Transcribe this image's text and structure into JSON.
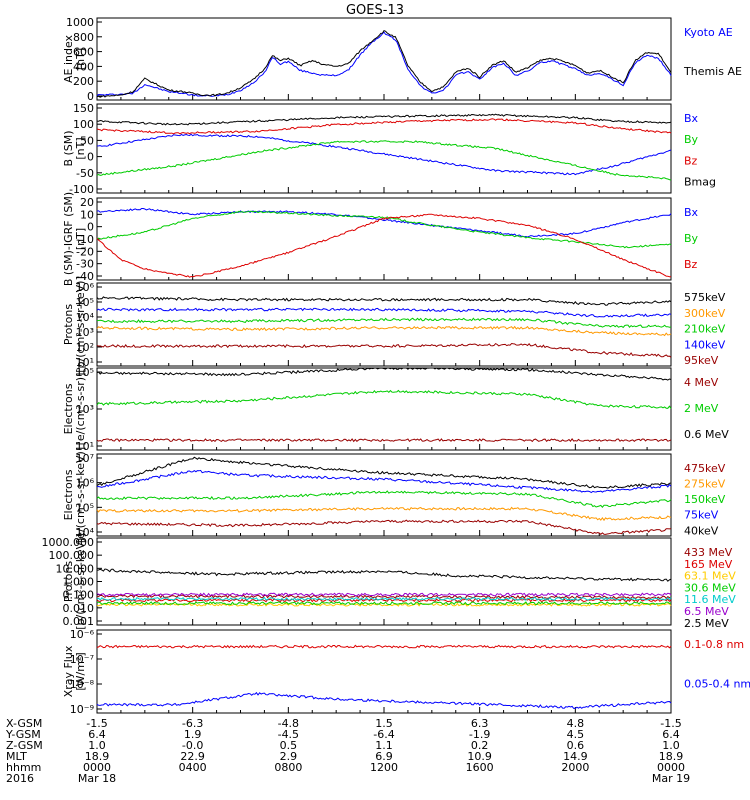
{
  "title": "GOES-13",
  "chart_data": [
    {
      "type": "line",
      "ylabel": "AE index\n[nT]",
      "yticks": [
        "1000",
        "800",
        "600",
        "400",
        "200",
        "0"
      ],
      "ylim": [
        0,
        1000
      ],
      "series": [
        {
          "name": "Kyoto AE",
          "color": "#0000ff",
          "x": [
            0,
            60,
            90,
            120,
            180,
            220,
            240,
            270,
            300,
            330,
            360,
            390,
            420,
            440,
            460,
            480,
            510,
            540,
            570,
            600,
            630,
            660,
            690,
            720,
            750,
            780,
            810,
            840,
            870,
            900,
            930,
            960,
            990,
            1020,
            1050,
            1080,
            1110,
            1140,
            1170,
            1200,
            1230,
            1260,
            1290,
            1320,
            1350,
            1380,
            1410,
            1440
          ],
          "values": [
            60,
            70,
            80,
            190,
            100,
            80,
            60,
            50,
            50,
            70,
            120,
            200,
            330,
            520,
            440,
            470,
            360,
            330,
            300,
            300,
            360,
            550,
            700,
            820,
            730,
            380,
            180,
            80,
            120,
            300,
            350,
            250,
            390,
            450,
            300,
            350,
            450,
            480,
            430,
            380,
            300,
            330,
            260,
            180,
            450,
            550,
            500,
            300
          ]
        },
        {
          "name": "Themis AE",
          "color": "#000000",
          "x": [
            0,
            60,
            90,
            120,
            180,
            220,
            240,
            270,
            300,
            330,
            360,
            390,
            420,
            440,
            460,
            480,
            510,
            540,
            570,
            600,
            630,
            660,
            690,
            720,
            750,
            780,
            810,
            840,
            870,
            900,
            930,
            960,
            990,
            1020,
            1050,
            1080,
            1110,
            1140,
            1170,
            1200,
            1230,
            1260,
            1290,
            1320,
            1350,
            1380,
            1410,
            1440
          ],
          "values": [
            40,
            60,
            100,
            260,
            120,
            100,
            80,
            60,
            60,
            90,
            150,
            240,
            380,
            540,
            480,
            510,
            420,
            480,
            430,
            410,
            440,
            600,
            720,
            840,
            760,
            420,
            220,
            110,
            160,
            340,
            390,
            280,
            420,
            480,
            340,
            390,
            480,
            510,
            470,
            420,
            330,
            360,
            290,
            210,
            480,
            580,
            560,
            330
          ]
        }
      ]
    },
    {
      "type": "line",
      "ylabel": "B (SM)\n[nT]",
      "yticks": [
        "150",
        "100",
        "50",
        "0",
        "-50",
        "-100"
      ],
      "ylim": [
        -110,
        150
      ],
      "series": [
        {
          "name": "Bx",
          "color": "#0000ff",
          "x": [
            0,
            200,
            400,
            600,
            800,
            1000,
            1200,
            1300,
            1440
          ],
          "values": [
            25,
            60,
            55,
            25,
            -10,
            -45,
            -55,
            -30,
            15
          ]
        },
        {
          "name": "By",
          "color": "#00cc00",
          "x": [
            0,
            200,
            400,
            600,
            800,
            1000,
            1200,
            1300,
            1440
          ],
          "values": [
            -58,
            -30,
            10,
            40,
            40,
            20,
            -30,
            -55,
            -70
          ]
        },
        {
          "name": "Bz",
          "color": "#dd0000",
          "x": [
            0,
            200,
            400,
            600,
            800,
            1000,
            1200,
            1300,
            1440
          ],
          "values": [
            75,
            65,
            70,
            90,
            100,
            105,
            95,
            80,
            65
          ]
        },
        {
          "name": "Bmag",
          "color": "#000000",
          "x": [
            0,
            200,
            400,
            600,
            800,
            1000,
            1200,
            1300,
            1440
          ],
          "values": [
            100,
            90,
            100,
            110,
            115,
            118,
            110,
            100,
            95
          ]
        }
      ]
    },
    {
      "type": "line",
      "ylabel": "B (SM)-IGRF (SM)\n[nT]",
      "yticks": [
        "20",
        "10",
        "0",
        "-10",
        "-20",
        "-30",
        "-40"
      ],
      "ylim": [
        -40,
        20
      ],
      "series": [
        {
          "name": "Bx",
          "color": "#0000ff",
          "x": [
            0,
            120,
            240,
            360,
            480,
            600,
            720,
            840,
            960,
            1080,
            1200,
            1320,
            1440
          ],
          "values": [
            10,
            12,
            8,
            10,
            10,
            8,
            4,
            0,
            -4,
            -8,
            -6,
            2,
            8
          ]
        },
        {
          "name": "By",
          "color": "#00cc00",
          "x": [
            0,
            120,
            240,
            360,
            480,
            600,
            720,
            840,
            960,
            1080,
            1200,
            1320,
            1440
          ],
          "values": [
            -10,
            -5,
            5,
            10,
            9,
            7,
            6,
            0,
            -5,
            -9,
            -12,
            -16,
            -14
          ]
        },
        {
          "name": "Bz",
          "color": "#dd0000",
          "x": [
            0,
            60,
            120,
            240,
            360,
            480,
            600,
            720,
            840,
            960,
            1080,
            1200,
            1320,
            1440
          ],
          "values": [
            -10,
            -25,
            -32,
            -38,
            -30,
            -20,
            -8,
            5,
            8,
            5,
            0,
            -10,
            -25,
            -38
          ]
        }
      ]
    },
    {
      "type": "line",
      "ylabel": "Protons\n[p/(cm²-s-sr-keV)]",
      "yticks": [
        "10⁶",
        "10⁵",
        "10⁴",
        "10³",
        "10²",
        "10¹"
      ],
      "ylim": [
        1,
        6
      ],
      "log": true,
      "series": [
        {
          "name": "575keV",
          "color": "#000000",
          "x": [
            0,
            360,
            720,
            1080,
            1260,
            1440
          ],
          "values": [
            5.1,
            5.0,
            5.0,
            5.0,
            4.7,
            4.9
          ]
        },
        {
          "name": "300keV",
          "color": "#ff9900",
          "x": [
            0,
            360,
            720,
            1080,
            1260,
            1440
          ],
          "values": [
            3.3,
            3.2,
            3.3,
            3.3,
            3.0,
            2.9
          ]
        },
        {
          "name": "210keV",
          "color": "#00cc00",
          "x": [
            0,
            360,
            720,
            1080,
            1260,
            1440
          ],
          "values": [
            3.7,
            3.7,
            3.8,
            3.8,
            3.4,
            3.4
          ]
        },
        {
          "name": "140keV",
          "color": "#0000ff",
          "x": [
            0,
            360,
            720,
            1080,
            1260,
            1440
          ],
          "values": [
            4.4,
            4.4,
            4.4,
            4.3,
            4.0,
            4.1
          ]
        },
        {
          "name": "95keV",
          "color": "#990000",
          "x": [
            0,
            360,
            720,
            1080,
            1260,
            1440
          ],
          "values": [
            2.2,
            2.2,
            2.2,
            2.3,
            1.8,
            1.6
          ]
        }
      ]
    },
    {
      "type": "line",
      "ylabel": "Electrons\n[e/(cm²-s-sr)]",
      "yticks": [
        "10⁵",
        "10³",
        "10¹"
      ],
      "ylim": [
        0,
        5
      ],
      "log": true,
      "series": [
        {
          "name": "4 MeV",
          "color": "#990000",
          "x": [
            0,
            360,
            720,
            1080,
            1260,
            1440
          ],
          "values": [
            0.6,
            0.6,
            0.6,
            0.6,
            0.6,
            0.6
          ]
        },
        {
          "name": "2 MeV",
          "color": "#00cc00",
          "x": [
            0,
            360,
            720,
            1080,
            1260,
            1440
          ],
          "values": [
            2.8,
            3.0,
            3.6,
            3.4,
            2.7,
            2.6
          ]
        },
        {
          "name": "0.6 MeV",
          "color": "#000000",
          "x": [
            0,
            360,
            720,
            1080,
            1260,
            1440
          ],
          "values": [
            4.7,
            4.6,
            5.0,
            4.9,
            4.6,
            4.3
          ]
        }
      ]
    },
    {
      "type": "line",
      "ylabel": "Electrons\n[e/(cm²-s-sr-keV)]",
      "yticks": [
        "10⁷",
        "10⁶",
        "10⁵",
        "10⁴"
      ],
      "ylim": [
        3.7,
        7.6
      ],
      "log": true,
      "series": [
        {
          "name": "475keV",
          "color": "#990000",
          "x": [
            0,
            360,
            720,
            1080,
            1260,
            1440
          ],
          "values": [
            4.3,
            4.2,
            4.4,
            4.4,
            3.8,
            4.0
          ]
        },
        {
          "name": "275keV",
          "color": "#ff9900",
          "x": [
            0,
            360,
            720,
            1080,
            1260,
            1440
          ],
          "values": [
            4.9,
            4.9,
            5.0,
            5.0,
            4.5,
            4.6
          ]
        },
        {
          "name": "150keV",
          "color": "#00cc00",
          "x": [
            0,
            360,
            720,
            1080,
            1260,
            1440
          ],
          "values": [
            5.5,
            5.5,
            5.8,
            5.7,
            5.1,
            5.4
          ]
        },
        {
          "name": "75keV",
          "color": "#0000ff",
          "x": [
            0,
            240,
            360,
            720,
            1080,
            1260,
            1440
          ],
          "values": [
            6.0,
            6.8,
            6.6,
            6.4,
            6.0,
            5.8,
            6.1
          ]
        },
        {
          "name": "40keV",
          "color": "#000000",
          "x": [
            0,
            240,
            360,
            720,
            1080,
            1260,
            1440
          ],
          "values": [
            6.1,
            7.4,
            7.2,
            6.7,
            6.4,
            6.0,
            6.2
          ]
        }
      ]
    },
    {
      "type": "line",
      "ylabel": "Protons\n[p/(cm²-s-sr-keV)]",
      "yticks": [
        "1000.000",
        "100.000",
        "10.000",
        "1.000",
        "0.100",
        "0.010",
        "0.001"
      ],
      "ylim": [
        -3,
        3
      ],
      "log": true,
      "series": [
        {
          "name": "433 MeV",
          "color": "#990000",
          "x": [
            0,
            1440
          ],
          "values": [
            -1.0,
            -1.1
          ]
        },
        {
          "name": "165 MeV",
          "color": "#dd0000",
          "x": [
            0,
            1440
          ],
          "values": [
            -1.3,
            -1.3
          ]
        },
        {
          "name": "63.1 MeV",
          "color": "#ffcc00",
          "x": [
            0,
            1440
          ],
          "values": [
            -1.6,
            -1.6
          ]
        },
        {
          "name": "30.6 MeV",
          "color": "#00cc00",
          "x": [
            0,
            1440
          ],
          "values": [
            -1.5,
            -1.5
          ]
        },
        {
          "name": "11.6 MeV",
          "color": "#00cccc",
          "x": [
            0,
            1440
          ],
          "values": [
            -1.2,
            -1.2
          ]
        },
        {
          "name": "6.5 MeV",
          "color": "#9900cc",
          "x": [
            0,
            1440
          ],
          "values": [
            -0.9,
            -0.9
          ]
        },
        {
          "name": "2.5 MeV",
          "color": "#000000",
          "x": [
            0,
            300,
            480,
            720,
            900,
            1200,
            1440
          ],
          "values": [
            0.8,
            0.5,
            0.6,
            0.7,
            0.4,
            0.2,
            0.1
          ]
        }
      ]
    },
    {
      "type": "line",
      "ylabel": "Xray Flux\n[W/m²]",
      "yticks": [
        "10⁻⁶",
        "10⁻⁷",
        "10⁻⁸",
        "10⁻⁹"
      ],
      "ylim": [
        -9,
        -6
      ],
      "log": true,
      "series": [
        {
          "name": "0.1-0.8 nm",
          "color": "#dd0000",
          "x": [
            0,
            200,
            400,
            600,
            800,
            1000,
            1200,
            1440
          ],
          "values": [
            -6.6,
            -6.6,
            -6.6,
            -6.6,
            -6.6,
            -6.6,
            -6.6,
            -6.6
          ]
        },
        {
          "name": "0.05-0.4 nm",
          "color": "#0000ff",
          "x": [
            0,
            200,
            400,
            600,
            800,
            1000,
            1200,
            1440
          ],
          "values": [
            -8.7,
            -8.7,
            -8.3,
            -8.5,
            -8.6,
            -8.7,
            -8.8,
            -8.6
          ]
        }
      ]
    }
  ],
  "footer": {
    "rows": [
      {
        "label": "X-GSM",
        "values": [
          "-1.5",
          "-6.3",
          "-4.8",
          "1.5",
          "6.3",
          "4.8",
          "-1.5"
        ]
      },
      {
        "label": "Y-GSM",
        "values": [
          "6.4",
          "1.9",
          "-4.5",
          "-6.4",
          "-1.9",
          "4.5",
          "6.4"
        ]
      },
      {
        "label": "Z-GSM",
        "values": [
          "1.0",
          "-0.0",
          "0.5",
          "1.1",
          "0.2",
          "0.6",
          "1.0"
        ]
      },
      {
        "label": "MLT",
        "values": [
          "18.9",
          "22.9",
          "2.9",
          "6.9",
          "10.9",
          "14.9",
          "18.9"
        ]
      },
      {
        "label": "hhmm",
        "values": [
          "0000",
          "0400",
          "0800",
          "1200",
          "1600",
          "2000",
          "0000"
        ]
      },
      {
        "label": "2016",
        "values": [
          "Mar 18",
          "",
          "",
          "",
          "",
          "",
          "Mar 19"
        ]
      }
    ]
  }
}
